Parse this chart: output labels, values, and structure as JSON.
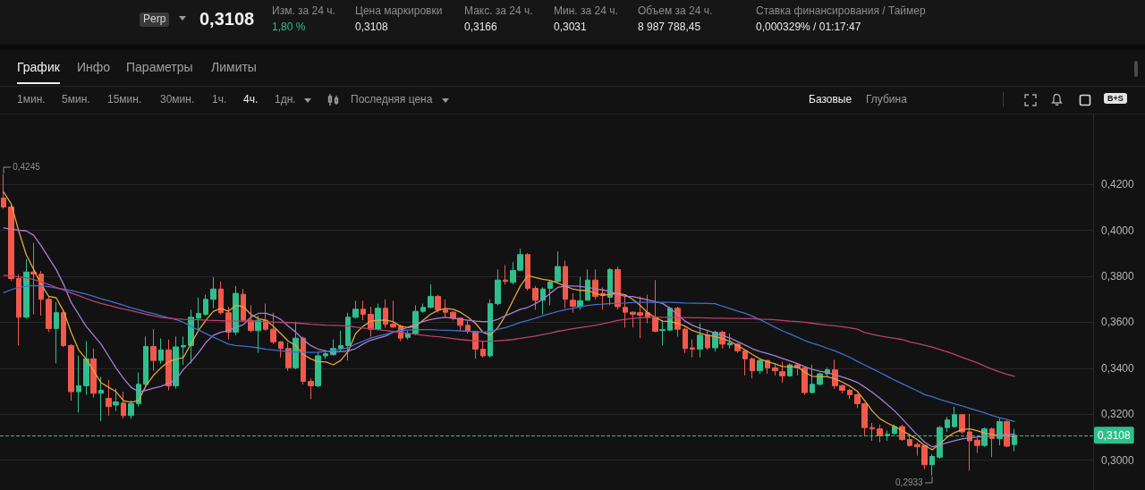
{
  "chart_data": {
    "type": "candlestick",
    "categories": [
      null,
      null,
      null,
      null,
      null,
      null,
      null,
      null,
      null,
      null,
      null,
      null,
      null,
      null,
      null,
      null,
      null,
      null,
      null,
      null,
      null,
      null,
      null,
      null,
      null,
      null,
      null,
      null,
      null,
      null,
      null,
      null,
      null,
      null,
      null,
      null,
      null,
      null,
      null,
      null,
      null,
      null,
      null,
      null,
      null,
      null,
      null,
      null,
      null,
      null,
      null,
      null,
      null,
      null,
      null,
      null,
      null,
      null,
      null,
      null,
      null,
      null,
      null,
      null,
      null,
      null,
      null,
      null,
      null,
      null,
      null,
      null,
      null,
      null,
      null,
      null,
      null,
      null,
      null,
      null,
      null,
      null,
      null,
      null,
      null,
      null,
      null,
      null,
      null,
      null,
      null,
      null,
      null,
      null,
      null,
      null,
      null,
      null,
      null,
      null,
      null,
      null,
      null,
      null,
      null,
      null,
      null,
      null,
      null,
      null,
      null,
      null,
      null,
      null,
      null,
      null,
      null,
      null,
      null,
      null,
      null,
      null,
      null,
      null,
      null,
      null,
      null,
      null,
      null,
      null,
      null,
      null,
      null,
      null,
      null,
      null
    ],
    "ohlc": [
      [
        0.4141,
        0.4245,
        0.4095,
        0.4102
      ],
      [
        0.4102,
        0.411,
        0.378,
        0.3791
      ],
      [
        0.3791,
        0.381,
        0.3499,
        0.3622
      ],
      [
        0.3622,
        0.3875,
        0.3616,
        0.3819
      ],
      [
        0.3819,
        0.3946,
        0.3635,
        0.381
      ],
      [
        0.381,
        0.3823,
        0.3629,
        0.37
      ],
      [
        0.37,
        0.3713,
        0.3557,
        0.3573
      ],
      [
        0.3573,
        0.3687,
        0.3421,
        0.3642
      ],
      [
        0.3642,
        0.3648,
        0.3492,
        0.3499
      ],
      [
        0.3499,
        0.3505,
        0.3259,
        0.3298
      ],
      [
        0.3298,
        0.3454,
        0.3207,
        0.3324
      ],
      [
        0.3324,
        0.3519,
        0.3285,
        0.3441
      ],
      [
        0.3441,
        0.3486,
        0.3272,
        0.3291
      ],
      [
        0.3291,
        0.3363,
        0.317,
        0.3304
      ],
      [
        0.3269,
        0.335,
        0.3194,
        0.3233
      ],
      [
        0.324,
        0.3311,
        0.3214,
        0.3253
      ],
      [
        0.3249,
        0.3298,
        0.3181,
        0.3194
      ],
      [
        0.3194,
        0.326,
        0.318,
        0.3246
      ],
      [
        0.3246,
        0.3382,
        0.3233,
        0.333
      ],
      [
        0.333,
        0.3538,
        0.3324,
        0.3495
      ],
      [
        0.3495,
        0.357,
        0.3389,
        0.3434
      ],
      [
        0.3434,
        0.353,
        0.342,
        0.348
      ],
      [
        0.348,
        0.3525,
        0.3304,
        0.3324
      ],
      [
        0.3324,
        0.3538,
        0.3311,
        0.3493
      ],
      [
        0.3493,
        0.3538,
        0.3415,
        0.3499
      ],
      [
        0.3499,
        0.3655,
        0.3421,
        0.3622
      ],
      [
        0.3618,
        0.3707,
        0.3564,
        0.3639
      ],
      [
        0.3635,
        0.372,
        0.3629,
        0.37
      ],
      [
        0.37,
        0.3797,
        0.3661,
        0.3745
      ],
      [
        0.3745,
        0.3778,
        0.3635,
        0.3642
      ],
      [
        0.3642,
        0.3668,
        0.3525,
        0.3557
      ],
      [
        0.3557,
        0.3758,
        0.3544,
        0.3726
      ],
      [
        0.3722,
        0.3745,
        0.3603,
        0.3609
      ],
      [
        0.3609,
        0.3674,
        0.3557,
        0.3564
      ],
      [
        0.3564,
        0.3629,
        0.3467,
        0.3609
      ],
      [
        0.3609,
        0.3681,
        0.3564,
        0.357
      ],
      [
        0.357,
        0.3642,
        0.3506,
        0.3515
      ],
      [
        0.3515,
        0.3518,
        0.3447,
        0.3486
      ],
      [
        0.3486,
        0.3512,
        0.3389,
        0.3402
      ],
      [
        0.3402,
        0.3603,
        0.3395,
        0.3531
      ],
      [
        0.3531,
        0.3538,
        0.333,
        0.3343
      ],
      [
        0.3343,
        0.3356,
        0.3266,
        0.3324
      ],
      [
        0.3324,
        0.3473,
        0.3317,
        0.3454
      ],
      [
        0.3454,
        0.348,
        0.3441,
        0.3463
      ],
      [
        0.346,
        0.3525,
        0.3454,
        0.3486
      ],
      [
        0.3486,
        0.3564,
        0.3473,
        0.3499
      ],
      [
        0.3499,
        0.3642,
        0.3434,
        0.3622
      ],
      [
        0.3622,
        0.3694,
        0.3616,
        0.3657
      ],
      [
        0.3657,
        0.3694,
        0.3609,
        0.3635
      ],
      [
        0.3635,
        0.3668,
        0.3538,
        0.357
      ],
      [
        0.357,
        0.3681,
        0.3564,
        0.3661
      ],
      [
        0.3661,
        0.37,
        0.3577,
        0.3592
      ],
      [
        0.3592,
        0.3694,
        0.3577,
        0.3579
      ],
      [
        0.3583,
        0.359,
        0.3518,
        0.3531
      ],
      [
        0.3535,
        0.3564,
        0.3525,
        0.3551
      ],
      [
        0.3551,
        0.3674,
        0.3544,
        0.3648
      ],
      [
        0.3648,
        0.3681,
        0.3642,
        0.3665
      ],
      [
        0.3665,
        0.3765,
        0.3661,
        0.3713
      ],
      [
        0.3713,
        0.372,
        0.3642,
        0.3655
      ],
      [
        0.3655,
        0.37,
        0.3622,
        0.3644
      ],
      [
        0.3644,
        0.3648,
        0.3609,
        0.3618
      ],
      [
        0.3618,
        0.3622,
        0.3564,
        0.3587
      ],
      [
        0.3587,
        0.3609,
        0.3551,
        0.3561
      ],
      [
        0.3561,
        0.3564,
        0.3441,
        0.3483
      ],
      [
        0.3483,
        0.3518,
        0.3447,
        0.3454
      ],
      [
        0.3454,
        0.37,
        0.3447,
        0.3681
      ],
      [
        0.3681,
        0.383,
        0.3674,
        0.3784
      ],
      [
        0.3784,
        0.3849,
        0.3765,
        0.3778
      ],
      [
        0.3774,
        0.3862,
        0.3765,
        0.3826
      ],
      [
        0.3827,
        0.392,
        0.3823,
        0.3895
      ],
      [
        0.3895,
        0.3901,
        0.3739,
        0.3748
      ],
      [
        0.3748,
        0.3758,
        0.3655,
        0.3696
      ],
      [
        0.3696,
        0.3752,
        0.3635,
        0.3745
      ],
      [
        0.3748,
        0.3784,
        0.3674,
        0.3775
      ],
      [
        0.3778,
        0.3908,
        0.3771,
        0.3843
      ],
      [
        0.3843,
        0.3869,
        0.3661,
        0.37
      ],
      [
        0.3696,
        0.3726,
        0.3642,
        0.367
      ],
      [
        0.3668,
        0.3797,
        0.3655,
        0.3694
      ],
      [
        0.3696,
        0.383,
        0.3694,
        0.3784
      ],
      [
        0.3784,
        0.383,
        0.37,
        0.3713
      ],
      [
        0.3726,
        0.3752,
        0.3655,
        0.3717
      ],
      [
        0.3709,
        0.3836,
        0.3674,
        0.383
      ],
      [
        0.383,
        0.3843,
        0.3655,
        0.3668
      ],
      [
        0.3665,
        0.372,
        0.3577,
        0.3644
      ],
      [
        0.3644,
        0.3648,
        0.3577,
        0.3635
      ],
      [
        0.3642,
        0.3713,
        0.3531,
        0.3631
      ],
      [
        0.3642,
        0.372,
        0.3596,
        0.3622
      ],
      [
        0.3622,
        0.3784,
        0.3557,
        0.3561
      ],
      [
        0.3564,
        0.3609,
        0.3499,
        0.3568
      ],
      [
        0.3566,
        0.3668,
        0.3564,
        0.3661
      ],
      [
        0.3661,
        0.3668,
        0.3538,
        0.357
      ],
      [
        0.357,
        0.3577,
        0.3467,
        0.3486
      ],
      [
        0.3489,
        0.3525,
        0.3447,
        0.3483
      ],
      [
        0.3483,
        0.3596,
        0.3447,
        0.3544
      ],
      [
        0.3544,
        0.3564,
        0.348,
        0.3489
      ],
      [
        0.3489,
        0.3564,
        0.3473,
        0.3557
      ],
      [
        0.3557,
        0.3564,
        0.3486,
        0.3505
      ],
      [
        0.3502,
        0.3552,
        0.3486,
        0.3509
      ],
      [
        0.3505,
        0.351,
        0.3467,
        0.3476
      ],
      [
        0.3476,
        0.348,
        0.3369,
        0.3441
      ],
      [
        0.3441,
        0.3447,
        0.3356,
        0.3389
      ],
      [
        0.3389,
        0.3437,
        0.3376,
        0.3434
      ],
      [
        0.3434,
        0.3437,
        0.3376,
        0.3402
      ],
      [
        0.3402,
        0.3421,
        0.3369,
        0.3389
      ],
      [
        0.3385,
        0.3428,
        0.3337,
        0.3367
      ],
      [
        0.3367,
        0.3421,
        0.3363,
        0.3415
      ],
      [
        0.3415,
        0.3421,
        0.3369,
        0.3402
      ],
      [
        0.3402,
        0.3405,
        0.3285,
        0.3294
      ],
      [
        0.3294,
        0.3415,
        0.3291,
        0.333
      ],
      [
        0.333,
        0.3382,
        0.3324,
        0.3376
      ],
      [
        0.3376,
        0.3402,
        0.3362,
        0.3393
      ],
      [
        0.3393,
        0.3437,
        0.3311,
        0.3324
      ],
      [
        0.3324,
        0.333,
        0.3291,
        0.3304
      ],
      [
        0.3304,
        0.3311,
        0.3266,
        0.3285
      ],
      [
        0.3285,
        0.3291,
        0.3227,
        0.3246
      ],
      [
        0.3246,
        0.325,
        0.3103,
        0.3142
      ],
      [
        0.3142,
        0.3162,
        0.3084,
        0.3136
      ],
      [
        0.3136,
        0.3155,
        0.3077,
        0.3107
      ],
      [
        0.3107,
        0.3129,
        0.3084,
        0.3112
      ],
      [
        0.3116,
        0.3155,
        0.311,
        0.3146
      ],
      [
        0.3146,
        0.3155,
        0.3084,
        0.309
      ],
      [
        0.309,
        0.3116,
        0.3058,
        0.3064
      ],
      [
        0.3068,
        0.3077,
        0.3019,
        0.3058
      ],
      [
        0.3064,
        0.3068,
        0.2961,
        0.298
      ],
      [
        0.298,
        0.3026,
        0.2933,
        0.3016
      ],
      [
        0.3013,
        0.3149,
        0.3006,
        0.3142
      ],
      [
        0.3142,
        0.3188,
        0.3123,
        0.3175
      ],
      [
        0.3146,
        0.3233,
        0.3142,
        0.3198
      ],
      [
        0.3198,
        0.3201,
        0.3116,
        0.3123
      ],
      [
        0.3123,
        0.3201,
        0.2954,
        0.3084
      ],
      [
        0.3087,
        0.3097,
        0.3032,
        0.3064
      ],
      [
        0.3064,
        0.3142,
        0.3058,
        0.3136
      ],
      [
        0.3136,
        0.3142,
        0.3013,
        0.3094
      ],
      [
        0.3094,
        0.3181,
        0.3064,
        0.3168
      ],
      [
        0.3168,
        0.3175,
        0.3058,
        0.3061
      ],
      [
        0.3068,
        0.3136,
        0.3039,
        0.3108
      ]
    ],
    "colors": [
      "#f2594b",
      "#f2594b",
      "#f2594b",
      "#2fbf8c",
      "#f2594b",
      "#f2594b",
      "#f2594b",
      "#2fbf8c",
      "#f2594b",
      "#f2594b",
      "#2fbf8c",
      "#2fbf8c",
      "#f2594b",
      "#2fbf8c",
      "#f2594b",
      "#2fbf8c",
      "#f2594b",
      "#2fbf8c",
      "#2fbf8c",
      "#2fbf8c",
      "#f2594b",
      "#2fbf8c",
      "#f2594b",
      "#2fbf8c",
      "#2fbf8c",
      "#2fbf8c",
      "#2fbf8c",
      "#2fbf8c",
      "#2fbf8c",
      "#f2594b",
      "#f2594b",
      "#2fbf8c",
      "#f2594b",
      "#f2594b",
      "#2fbf8c",
      "#f2594b",
      "#f2594b",
      "#f2594b",
      "#f2594b",
      "#2fbf8c",
      "#f2594b",
      "#f2594b",
      "#2fbf8c",
      "#2fbf8c",
      "#2fbf8c",
      "#2fbf8c",
      "#2fbf8c",
      "#2fbf8c",
      "#f2594b",
      "#f2594b",
      "#2fbf8c",
      "#f2594b",
      "#f2594b",
      "#f2594b",
      "#2fbf8c",
      "#2fbf8c",
      "#2fbf8c",
      "#2fbf8c",
      "#f2594b",
      "#f2594b",
      "#f2594b",
      "#f2594b",
      "#f2594b",
      "#f2594b",
      "#f2594b",
      "#2fbf8c",
      "#2fbf8c",
      "#f2594b",
      "#2fbf8c",
      "#2fbf8c",
      "#f2594b",
      "#f2594b",
      "#2fbf8c",
      "#2fbf8c",
      "#2fbf8c",
      "#f2594b",
      "#f2594b",
      "#2fbf8c",
      "#2fbf8c",
      "#f2594b",
      "#f2594b",
      "#2fbf8c",
      "#f2594b",
      "#f2594b",
      "#f2594b",
      "#f2594b",
      "#f2594b",
      "#f2594b",
      "#2fbf8c",
      "#2fbf8c",
      "#f2594b",
      "#f2594b",
      "#f2594b",
      "#2fbf8c",
      "#f2594b",
      "#2fbf8c",
      "#f2594b",
      "#2fbf8c",
      "#f2594b",
      "#f2594b",
      "#f2594b",
      "#2fbf8c",
      "#f2594b",
      "#f2594b",
      "#f2594b",
      "#2fbf8c",
      "#f2594b",
      "#f2594b",
      "#2fbf8c",
      "#2fbf8c",
      "#2fbf8c",
      "#f2594b",
      "#f2594b",
      "#f2594b",
      "#f2594b",
      "#f2594b",
      "#f2594b",
      "#f2594b",
      "#2fbf8c",
      "#2fbf8c",
      "#f2594b",
      "#f2594b",
      "#f2594b",
      "#f2594b",
      "#2fbf8c",
      "#2fbf8c",
      "#2fbf8c",
      "#2fbf8c",
      "#f2594b",
      "#f2594b",
      "#f2594b",
      "#2fbf8c",
      "#f2594b",
      "#2fbf8c",
      "#f2594b",
      "#2fbf8c"
    ],
    "series": [
      {
        "type": "line",
        "color": "#e8a33c",
        "values": [
          0.4167,
          0.4115,
          0.3998,
          0.3895,
          0.383,
          0.3765,
          0.3713,
          0.3707,
          0.3648,
          0.3557,
          0.348,
          0.3441,
          0.3389,
          0.3337,
          0.3317,
          0.3298,
          0.3259,
          0.3252,
          0.3259,
          0.3324,
          0.3369,
          0.3402,
          0.3428,
          0.344,
          0.3447,
          0.3506,
          0.3564,
          0.3609,
          0.3648,
          0.3661,
          0.3648,
          0.3674,
          0.3668,
          0.3635,
          0.3616,
          0.3609,
          0.3583,
          0.3551,
          0.3518,
          0.3499,
          0.346,
          0.3441,
          0.3428,
          0.3428,
          0.3415,
          0.3434,
          0.3473,
          0.3551,
          0.3583,
          0.3605,
          0.3609,
          0.3609,
          0.3603,
          0.3583,
          0.3577,
          0.3583,
          0.3609,
          0.3635,
          0.3652,
          0.3661,
          0.3657,
          0.3644,
          0.3622,
          0.3596,
          0.3557,
          0.3544,
          0.3577,
          0.3629,
          0.3694,
          0.3758,
          0.3804,
          0.3795,
          0.3787,
          0.3782,
          0.3771,
          0.3758,
          0.3745,
          0.3739,
          0.3739,
          0.3726,
          0.3717,
          0.3722,
          0.3726,
          0.372,
          0.37,
          0.3674,
          0.3642,
          0.3622,
          0.3605,
          0.3603,
          0.3596,
          0.3583,
          0.3564,
          0.3553,
          0.3544,
          0.3538,
          0.3528,
          0.3518,
          0.3499,
          0.348,
          0.346,
          0.3441,
          0.3428,
          0.3419,
          0.3408,
          0.3406,
          0.3406,
          0.3382,
          0.3365,
          0.3363,
          0.3363,
          0.3354,
          0.334,
          0.3322,
          0.33,
          0.3259,
          0.3214,
          0.3181,
          0.3162,
          0.3146,
          0.3129,
          0.311,
          0.309,
          0.3064,
          0.3045,
          0.307,
          0.31,
          0.312,
          0.3133,
          0.3136,
          0.3128,
          0.3118,
          0.3112,
          0.3108,
          0.3106,
          0.3104
        ]
      },
      {
        "type": "line",
        "color": "#a77fd6",
        "values": [
          0.4011,
          0.4005,
          0.4001,
          0.3998,
          0.3979,
          0.3933,
          0.3882,
          0.383,
          0.3765,
          0.3687,
          0.3635,
          0.3583,
          0.3544,
          0.3505,
          0.3453,
          0.3401,
          0.3356,
          0.3317,
          0.3298,
          0.3304,
          0.3313,
          0.3321,
          0.3335,
          0.335,
          0.3395,
          0.3428,
          0.3467,
          0.3512,
          0.3544,
          0.3557,
          0.3564,
          0.3577,
          0.359,
          0.3622,
          0.3639,
          0.3639,
          0.3629,
          0.3613,
          0.3583,
          0.3557,
          0.3525,
          0.3499,
          0.3483,
          0.3476,
          0.347,
          0.3473,
          0.3475,
          0.3486,
          0.3506,
          0.3522,
          0.3531,
          0.354,
          0.3557,
          0.3566,
          0.3579,
          0.3592,
          0.3603,
          0.3612,
          0.3618,
          0.3622,
          0.3618,
          0.3613,
          0.3609,
          0.3605,
          0.3603,
          0.3603,
          0.3613,
          0.3629,
          0.3642,
          0.3657,
          0.3665,
          0.3681,
          0.37,
          0.3726,
          0.3752,
          0.3758,
          0.3758,
          0.3756,
          0.3752,
          0.3745,
          0.3741,
          0.3735,
          0.3722,
          0.3713,
          0.3712,
          0.3705,
          0.3698,
          0.369,
          0.3682,
          0.366,
          0.3635,
          0.3605,
          0.3587,
          0.3574,
          0.3564,
          0.3553,
          0.3543,
          0.3531,
          0.3517,
          0.3501,
          0.3485,
          0.3473,
          0.3464,
          0.3454,
          0.3443,
          0.3432,
          0.342,
          0.3407,
          0.3395,
          0.3387,
          0.3381,
          0.3372,
          0.3362,
          0.3351,
          0.3339,
          0.3318,
          0.3295,
          0.327,
          0.3243,
          0.3214,
          0.318,
          0.3145,
          0.311,
          0.3078,
          0.3058,
          0.3066,
          0.3076,
          0.3085,
          0.3092,
          0.3097,
          0.31,
          0.3103,
          0.3106,
          0.3109,
          0.3112,
          0.3114
        ]
      },
      {
        "type": "line",
        "color": "#3e6fd6",
        "values": [
          0.3729,
          0.3742,
          0.3752,
          0.3757,
          0.376,
          0.3758,
          0.3755,
          0.3749,
          0.3744,
          0.3739,
          0.3731,
          0.3723,
          0.3713,
          0.3703,
          0.3694,
          0.3684,
          0.3674,
          0.3664,
          0.3655,
          0.3645,
          0.3638,
          0.3629,
          0.362,
          0.3612,
          0.36,
          0.3583,
          0.3566,
          0.3551,
          0.3535,
          0.3521,
          0.3505,
          0.3499,
          0.3496,
          0.3493,
          0.3489,
          0.3483,
          0.348,
          0.3476,
          0.3473,
          0.347,
          0.347,
          0.3469,
          0.347,
          0.3473,
          0.3477,
          0.3483,
          0.3489,
          0.3505,
          0.3518,
          0.3531,
          0.354,
          0.3548,
          0.3557,
          0.3564,
          0.3566,
          0.3568,
          0.3568,
          0.3568,
          0.3566,
          0.3565,
          0.3564,
          0.3563,
          0.3561,
          0.3559,
          0.3557,
          0.3561,
          0.3569,
          0.3577,
          0.3588,
          0.3599,
          0.3608,
          0.3618,
          0.3629,
          0.3638,
          0.3647,
          0.3655,
          0.3661,
          0.3668,
          0.3673,
          0.3677,
          0.3679,
          0.3682,
          0.3683,
          0.3684,
          0.3686,
          0.3687,
          0.3687,
          0.3687,
          0.3687,
          0.3687,
          0.3686,
          0.3684,
          0.3683,
          0.3683,
          0.3682,
          0.3681,
          0.367,
          0.366,
          0.3649,
          0.3639,
          0.3627,
          0.3612,
          0.3596,
          0.3579,
          0.3563,
          0.355,
          0.3535,
          0.3521,
          0.3509,
          0.3499,
          0.3487,
          0.3476,
          0.3462,
          0.3448,
          0.343,
          0.3414,
          0.3398,
          0.3382,
          0.3365,
          0.3348,
          0.3333,
          0.3317,
          0.3302,
          0.3285,
          0.3276,
          0.3265,
          0.3255,
          0.3245,
          0.3236,
          0.3226,
          0.3216,
          0.3206,
          0.3195,
          0.3185,
          0.3177,
          0.3168
        ]
      },
      {
        "type": "line",
        "color": "#c03f6f",
        "values": [
          0.3805,
          0.3802,
          0.3798,
          0.3794,
          0.3786,
          0.3776,
          0.3765,
          0.3752,
          0.374,
          0.3728,
          0.3716,
          0.3704,
          0.3692,
          0.3682,
          0.3674,
          0.3666,
          0.3658,
          0.3651,
          0.3643,
          0.3635,
          0.3629,
          0.3622,
          0.3618,
          0.3615,
          0.3613,
          0.3612,
          0.3611,
          0.3609,
          0.3608,
          0.3607,
          0.3605,
          0.3605,
          0.3605,
          0.3605,
          0.3604,
          0.3603,
          0.3601,
          0.36,
          0.3599,
          0.3597,
          0.3595,
          0.3592,
          0.359,
          0.3588,
          0.3587,
          0.3586,
          0.3584,
          0.3579,
          0.3575,
          0.3572,
          0.3568,
          0.3564,
          0.356,
          0.3556,
          0.3552,
          0.3548,
          0.3544,
          0.354,
          0.3537,
          0.3533,
          0.3529,
          0.3525,
          0.3522,
          0.352,
          0.3518,
          0.3518,
          0.352,
          0.3522,
          0.3525,
          0.353,
          0.3535,
          0.354,
          0.3547,
          0.3553,
          0.3561,
          0.3566,
          0.3572,
          0.3577,
          0.3582,
          0.3587,
          0.3594,
          0.36,
          0.3608,
          0.3613,
          0.3617,
          0.362,
          0.3621,
          0.3622,
          0.3622,
          0.3622,
          0.3621,
          0.3621,
          0.362,
          0.362,
          0.3619,
          0.3618,
          0.3618,
          0.3617,
          0.3617,
          0.3616,
          0.3616,
          0.3614,
          0.3613,
          0.3611,
          0.3608,
          0.3605,
          0.3603,
          0.36,
          0.3596,
          0.3592,
          0.3588,
          0.3585,
          0.3581,
          0.3576,
          0.357,
          0.3556,
          0.3548,
          0.3541,
          0.3535,
          0.353,
          0.3525,
          0.3515,
          0.3508,
          0.35,
          0.3492,
          0.3482,
          0.3472,
          0.346,
          0.3448,
          0.3436,
          0.3424,
          0.341,
          0.3396,
          0.3384,
          0.3374,
          0.3365
        ]
      }
    ],
    "ylim": [
      0.287,
      0.4505
    ],
    "yticks": [
      {
        "value": 0.3,
        "label": "0,3000"
      },
      {
        "value": 0.32,
        "label": "0,3200"
      },
      {
        "value": 0.34,
        "label": "0,3400"
      },
      {
        "value": 0.36,
        "label": "0,3600"
      },
      {
        "value": 0.38,
        "label": "0,3800"
      },
      {
        "value": 0.4,
        "label": "0,4000"
      },
      {
        "value": 0.42,
        "label": "0,4200"
      }
    ],
    "tick_labels": "y",
    "grid": "y",
    "marker": "none",
    "ref_lines": [
      {
        "axis": "y",
        "value": 0.3108,
        "label": "0,3108",
        "color": "#2fbf8c",
        "line_style": "dashed"
      }
    ],
    "annotations": [
      "Perp",
      "0,3108",
      "Изм. за 24 ч.",
      "1,80 %",
      "Цена маркировки",
      "0,3108",
      "Макс. за 24 ч.",
      "0,3166",
      "Мин. за 24 ч.",
      "0,3031",
      "Объем за 24 ч.",
      "8 987 788,45",
      "Ставка финансирования / Таймер",
      "0,000329% / 01:17:47",
      "График",
      "Инфо",
      "Параметры",
      "Лимиты",
      "1мин.",
      "5мин.",
      "15мин.",
      "30мин.",
      "1ч.",
      "4ч.",
      "1дн.",
      "Последняя цена",
      "Базовые",
      "Глубина",
      "B+S",
      "0,4245",
      "0,2933"
    ]
  }
}
